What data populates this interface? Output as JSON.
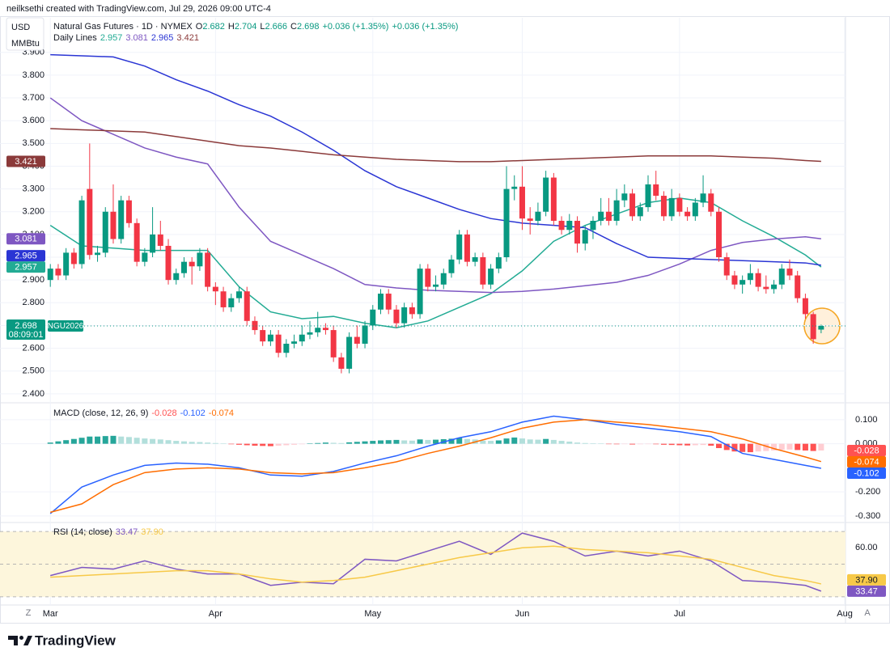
{
  "header": {
    "credit": "neilksethi created with TradingView.com, Jul 29, 2026 09:00 UTC-4"
  },
  "toolbar": {
    "currency": "USD",
    "unit": "MMBtu"
  },
  "footer": {
    "brand": "TradingView"
  },
  "chart_data": [
    {
      "type": "candlestick",
      "title": "Natural Gas Futures · 1D · NYMEX",
      "quote_keys": [
        "O",
        "H",
        "L",
        "C"
      ],
      "change": [
        "+0.036 (+1.35%)",
        "+0.036 (+1.35%)"
      ],
      "indicator": "Daily Lines",
      "symbol": "NGU2026",
      "countdown": "08:09:01",
      "up_color": "#089981",
      "down_color": "#f23645",
      "grid": true,
      "xlim": [
        -6.4,
        101.1
      ],
      "xticks": [
        {
          "value": 0,
          "label": "Mar"
        },
        {
          "value": 21,
          "label": "Apr"
        },
        {
          "value": 41,
          "label": "May"
        },
        {
          "value": 60,
          "label": "Jun"
        },
        {
          "value": 80,
          "label": "Jul"
        },
        {
          "value": 101,
          "label": "Aug"
        }
      ],
      "ylim": [
        2.364,
        4.052
      ],
      "yticks": [
        {
          "value": 3.9,
          "label": "3.900"
        },
        {
          "value": 3.8,
          "label": "3.800"
        },
        {
          "value": 3.7,
          "label": "3.700"
        },
        {
          "value": 3.6,
          "label": "3.600"
        },
        {
          "value": 3.5,
          "label": "3.500"
        },
        {
          "value": 3.4,
          "label": "3.400"
        },
        {
          "value": 3.3,
          "label": "3.300"
        },
        {
          "value": 3.2,
          "label": "3.200"
        },
        {
          "value": 3.1,
          "label": "3.100"
        },
        {
          "value": 3.0,
          "label": "3.000"
        },
        {
          "value": 2.9,
          "label": "2.900"
        },
        {
          "value": 2.8,
          "label": "2.800"
        },
        {
          "value": 2.7,
          "label": "2.700"
        },
        {
          "value": 2.6,
          "label": "2.600"
        },
        {
          "value": 2.5,
          "label": "2.500"
        },
        {
          "value": 2.4,
          "label": "2.400"
        }
      ],
      "ohlc": [
        [
          2.9,
          2.97,
          2.87,
          2.95
        ],
        [
          2.95,
          2.97,
          2.9,
          2.92
        ],
        [
          2.92,
          3.04,
          2.9,
          3.02
        ],
        [
          3.02,
          3.04,
          2.95,
          2.97
        ],
        [
          2.97,
          3.27,
          2.95,
          3.25
        ],
        [
          3.3,
          3.5,
          2.99,
          3.01
        ],
        [
          3.01,
          3.05,
          2.98,
          3.02
        ],
        [
          3.02,
          3.22,
          3.0,
          3.2
        ],
        [
          3.2,
          3.32,
          3.06,
          3.08
        ],
        [
          3.08,
          3.27,
          3.06,
          3.25
        ],
        [
          3.25,
          3.27,
          3.13,
          3.15
        ],
        [
          3.15,
          3.17,
          2.96,
          2.98
        ],
        [
          2.98,
          3.04,
          2.96,
          3.02
        ],
        [
          3.02,
          3.22,
          3.0,
          3.1
        ],
        [
          3.1,
          3.16,
          3.03,
          3.05
        ],
        [
          3.05,
          3.08,
          2.88,
          2.9
        ],
        [
          2.9,
          2.95,
          2.88,
          2.93
        ],
        [
          2.93,
          3.0,
          2.91,
          2.98
        ],
        [
          2.98,
          3.0,
          2.88,
          2.96
        ],
        [
          2.96,
          3.04,
          2.94,
          3.02
        ],
        [
          3.02,
          3.04,
          2.85,
          2.87
        ],
        [
          2.87,
          2.89,
          2.79,
          2.85
        ],
        [
          2.85,
          2.87,
          2.76,
          2.78
        ],
        [
          2.78,
          2.84,
          2.76,
          2.82
        ],
        [
          2.82,
          2.87,
          2.8,
          2.85
        ],
        [
          2.85,
          2.87,
          2.7,
          2.72
        ],
        [
          2.72,
          2.74,
          2.66,
          2.68
        ],
        [
          2.68,
          2.7,
          2.61,
          2.63
        ],
        [
          2.63,
          2.68,
          2.61,
          2.66
        ],
        [
          2.66,
          2.68,
          2.56,
          2.58
        ],
        [
          2.58,
          2.64,
          2.56,
          2.62
        ],
        [
          2.62,
          2.66,
          2.6,
          2.63
        ],
        [
          2.63,
          2.7,
          2.61,
          2.66
        ],
        [
          2.66,
          2.72,
          2.64,
          2.67
        ],
        [
          2.67,
          2.76,
          2.65,
          2.69
        ],
        [
          2.69,
          2.71,
          2.66,
          2.68
        ],
        [
          2.68,
          2.7,
          2.54,
          2.56
        ],
        [
          2.56,
          2.58,
          2.49,
          2.51
        ],
        [
          2.51,
          2.67,
          2.49,
          2.65
        ],
        [
          2.65,
          2.7,
          2.6,
          2.62
        ],
        [
          2.62,
          2.72,
          2.6,
          2.7
        ],
        [
          2.7,
          2.79,
          2.68,
          2.77
        ],
        [
          2.77,
          2.86,
          2.75,
          2.84
        ],
        [
          2.84,
          2.86,
          2.75,
          2.77
        ],
        [
          2.77,
          2.79,
          2.69,
          2.71
        ],
        [
          2.71,
          2.8,
          2.69,
          2.78
        ],
        [
          2.78,
          2.8,
          2.73,
          2.75
        ],
        [
          2.75,
          2.97,
          2.73,
          2.95
        ],
        [
          2.95,
          2.97,
          2.85,
          2.87
        ],
        [
          2.87,
          2.92,
          2.85,
          2.88
        ],
        [
          2.88,
          2.95,
          2.86,
          2.93
        ],
        [
          2.93,
          3.01,
          2.91,
          2.99
        ],
        [
          2.99,
          3.12,
          2.97,
          3.1
        ],
        [
          3.1,
          3.12,
          2.96,
          2.98
        ],
        [
          2.98,
          3.02,
          2.96,
          3.0
        ],
        [
          3.0,
          3.02,
          2.86,
          2.88
        ],
        [
          2.88,
          2.97,
          2.86,
          2.95
        ],
        [
          2.95,
          3.02,
          2.93,
          3.0
        ],
        [
          3.0,
          3.4,
          2.98,
          3.3
        ],
        [
          3.3,
          3.36,
          3.25,
          3.31
        ],
        [
          3.31,
          3.4,
          3.12,
          3.17
        ],
        [
          3.17,
          3.22,
          3.1,
          3.16
        ],
        [
          3.16,
          3.24,
          3.14,
          3.2
        ],
        [
          3.2,
          3.38,
          3.18,
          3.35
        ],
        [
          3.35,
          3.37,
          3.14,
          3.16
        ],
        [
          3.16,
          3.18,
          3.1,
          3.12
        ],
        [
          3.12,
          3.19,
          3.1,
          3.16
        ],
        [
          3.16,
          3.18,
          3.02,
          3.06
        ],
        [
          3.06,
          3.14,
          3.03,
          3.12
        ],
        [
          3.12,
          3.18,
          3.08,
          3.16
        ],
        [
          3.16,
          3.26,
          3.14,
          3.2
        ],
        [
          3.2,
          3.26,
          3.14,
          3.16
        ],
        [
          3.16,
          3.3,
          3.14,
          3.25
        ],
        [
          3.25,
          3.32,
          3.22,
          3.28
        ],
        [
          3.28,
          3.3,
          3.16,
          3.18
        ],
        [
          3.18,
          3.24,
          3.16,
          3.22
        ],
        [
          3.22,
          3.36,
          3.2,
          3.32
        ],
        [
          3.32,
          3.38,
          3.25,
          3.27
        ],
        [
          3.27,
          3.29,
          3.16,
          3.18
        ],
        [
          3.18,
          3.3,
          3.16,
          3.26
        ],
        [
          3.26,
          3.28,
          3.18,
          3.2
        ],
        [
          3.2,
          3.22,
          3.16,
          3.18
        ],
        [
          3.18,
          3.26,
          3.16,
          3.24
        ],
        [
          3.24,
          3.36,
          3.22,
          3.28
        ],
        [
          3.28,
          3.3,
          3.18,
          3.2
        ],
        [
          3.2,
          3.22,
          2.98,
          3.0
        ],
        [
          3.0,
          3.02,
          2.9,
          2.92
        ],
        [
          2.92,
          2.94,
          2.86,
          2.88
        ],
        [
          2.88,
          2.92,
          2.84,
          2.9
        ],
        [
          2.9,
          2.97,
          2.88,
          2.93
        ],
        [
          2.93,
          2.95,
          2.85,
          2.87
        ],
        [
          2.87,
          2.92,
          2.84,
          2.86
        ],
        [
          2.86,
          2.9,
          2.84,
          2.88
        ],
        [
          2.88,
          2.97,
          2.86,
          2.95
        ],
        [
          2.95,
          2.99,
          2.9,
          2.92
        ],
        [
          2.92,
          2.94,
          2.8,
          2.82
        ],
        [
          2.82,
          2.84,
          2.73,
          2.75
        ],
        [
          2.75,
          2.76,
          2.62,
          2.64
        ],
        [
          2.682,
          2.704,
          2.666,
          2.698
        ]
      ],
      "line_x": [
        0,
        4,
        8,
        12,
        16,
        20,
        24,
        28,
        32,
        36,
        40,
        44,
        48,
        52,
        56,
        60,
        64,
        68,
        72,
        76,
        80,
        84,
        88,
        92,
        96,
        98
      ],
      "series": [
        {
          "color": "#22ab94",
          "values": [
            3.14,
            3.05,
            3.04,
            3.03,
            3.03,
            3.03,
            2.87,
            2.76,
            2.73,
            2.74,
            2.71,
            2.69,
            2.72,
            2.78,
            2.84,
            2.94,
            3.07,
            3.14,
            3.19,
            3.24,
            3.26,
            3.24,
            3.16,
            3.09,
            3.01,
            2.957
          ]
        },
        {
          "color": "#7e57c2",
          "values": [
            3.7,
            3.6,
            3.54,
            3.48,
            3.44,
            3.41,
            3.22,
            3.07,
            3.01,
            2.95,
            2.88,
            2.865,
            2.855,
            2.85,
            2.845,
            2.85,
            2.86,
            2.875,
            2.89,
            2.92,
            2.97,
            3.03,
            3.065,
            3.08,
            3.09,
            3.081
          ]
        },
        {
          "color": "#2a35d4",
          "values": [
            3.89,
            3.885,
            3.88,
            3.84,
            3.78,
            3.73,
            3.67,
            3.62,
            3.55,
            3.47,
            3.38,
            3.31,
            3.26,
            3.21,
            3.17,
            3.15,
            3.14,
            3.13,
            3.06,
            3.0,
            2.995,
            2.99,
            2.985,
            2.98,
            2.975,
            2.965
          ]
        },
        {
          "color": "#8b3a3a",
          "values": [
            3.565,
            3.56,
            3.555,
            3.55,
            3.53,
            3.51,
            3.49,
            3.48,
            3.465,
            3.45,
            3.44,
            3.43,
            3.425,
            3.42,
            3.42,
            3.425,
            3.43,
            3.435,
            3.44,
            3.445,
            3.445,
            3.445,
            3.44,
            3.435,
            3.425,
            3.421
          ]
        }
      ]
    },
    {
      "type": "macd",
      "title": "MACD (close, 12, 26, 9)",
      "ylim": [
        -0.324,
        0.167
      ],
      "yticks": [
        {
          "value": 0.1,
          "label": "0.100"
        },
        {
          "value": 0,
          "label": "0.000"
        },
        {
          "value": -0.2,
          "label": "-0.200"
        },
        {
          "value": -0.3,
          "label": "-0.300"
        }
      ],
      "hist_colors": {
        "up": "#26a69a",
        "up_fading": "#b2dfdb",
        "down": "#ff5252",
        "down_fading": "#ffcdd2"
      },
      "series": [
        {
          "type": "histogram",
          "values": [
            0.005,
            0.01,
            0.015,
            0.02,
            0.025,
            0.03,
            0.03,
            0.032,
            0.033,
            0.03,
            0.028,
            0.025,
            0.022,
            0.02,
            0.018,
            0.015,
            0.012,
            0.01,
            0.008,
            0.007,
            0.005,
            0.003,
            0.001,
            -0.002,
            -0.004,
            -0.006,
            -0.008,
            -0.009,
            -0.01,
            -0.008,
            -0.006,
            -0.004,
            -0.002,
            0.001,
            0.003,
            0.005,
            0.004,
            0.003,
            0.006,
            0.008,
            0.01,
            0.012,
            0.014,
            0.015,
            0.016,
            0.014,
            0.013,
            0.018,
            0.016,
            0.017,
            0.019,
            0.021,
            0.024,
            0.02,
            0.018,
            0.013,
            0.012,
            0.014,
            0.022,
            0.026,
            0.022,
            0.018,
            0.017,
            0.02,
            0.016,
            0.012,
            0.009,
            0.005,
            0.003,
            0.002,
            0.001,
            -0.001,
            -0.002,
            -0.001,
            -0.003,
            -0.002,
            -0.001,
            -0.002,
            -0.004,
            -0.005,
            -0.006,
            -0.007,
            -0.006,
            -0.005,
            -0.008,
            -0.018,
            -0.026,
            -0.032,
            -0.034,
            -0.035,
            -0.032,
            -0.03,
            -0.028,
            -0.025,
            -0.024,
            -0.026,
            -0.028,
            -0.03,
            -0.028
          ]
        },
        {
          "type": "line",
          "color": "#2962ff",
          "values": [
            -0.29,
            -0.18,
            -0.13,
            -0.09,
            -0.08,
            -0.085,
            -0.1,
            -0.13,
            -0.135,
            -0.115,
            -0.08,
            -0.05,
            -0.01,
            0.025,
            0.05,
            0.09,
            0.115,
            0.1,
            0.08,
            0.065,
            0.05,
            0.03,
            -0.04,
            -0.065,
            -0.09,
            -0.102
          ]
        },
        {
          "type": "line",
          "color": "#ff6d00",
          "values": [
            -0.285,
            -0.25,
            -0.17,
            -0.12,
            -0.105,
            -0.1,
            -0.105,
            -0.12,
            -0.125,
            -0.12,
            -0.1,
            -0.075,
            -0.04,
            -0.01,
            0.025,
            0.065,
            0.09,
            0.1,
            0.09,
            0.08,
            0.065,
            0.05,
            0.02,
            -0.02,
            -0.055,
            -0.074
          ]
        }
      ]
    },
    {
      "type": "rsi",
      "title": "RSI (14; close)",
      "ylim": [
        25,
        75
      ],
      "yticks": [
        {
          "value": 60,
          "label": "60.00"
        }
      ],
      "bands": [
        30,
        50,
        70
      ],
      "band_color": "#fdf6dc",
      "series": [
        {
          "type": "line",
          "color": "#7e57c2",
          "values": [
            43,
            48,
            47,
            52,
            47,
            44,
            44,
            37,
            39,
            38,
            53,
            52,
            58,
            64,
            56,
            69,
            64,
            55,
            58,
            55,
            58,
            52,
            40,
            39,
            37,
            33.47
          ]
        },
        {
          "type": "line",
          "color": "#f7c948",
          "values": [
            42,
            43,
            44,
            45,
            46,
            46,
            44,
            41,
            39,
            40,
            42,
            46,
            50,
            54,
            57,
            60,
            61,
            59,
            58,
            57,
            55,
            53,
            48,
            43,
            40,
            37.9
          ],
          "value_labels": [
            null,
            null,
            null,
            null,
            null,
            null,
            null,
            null,
            null,
            null,
            null,
            null,
            null,
            null,
            null,
            null,
            null,
            null,
            null,
            null,
            null,
            null,
            null,
            null,
            null,
            "37.90"
          ]
        }
      ]
    }
  ]
}
